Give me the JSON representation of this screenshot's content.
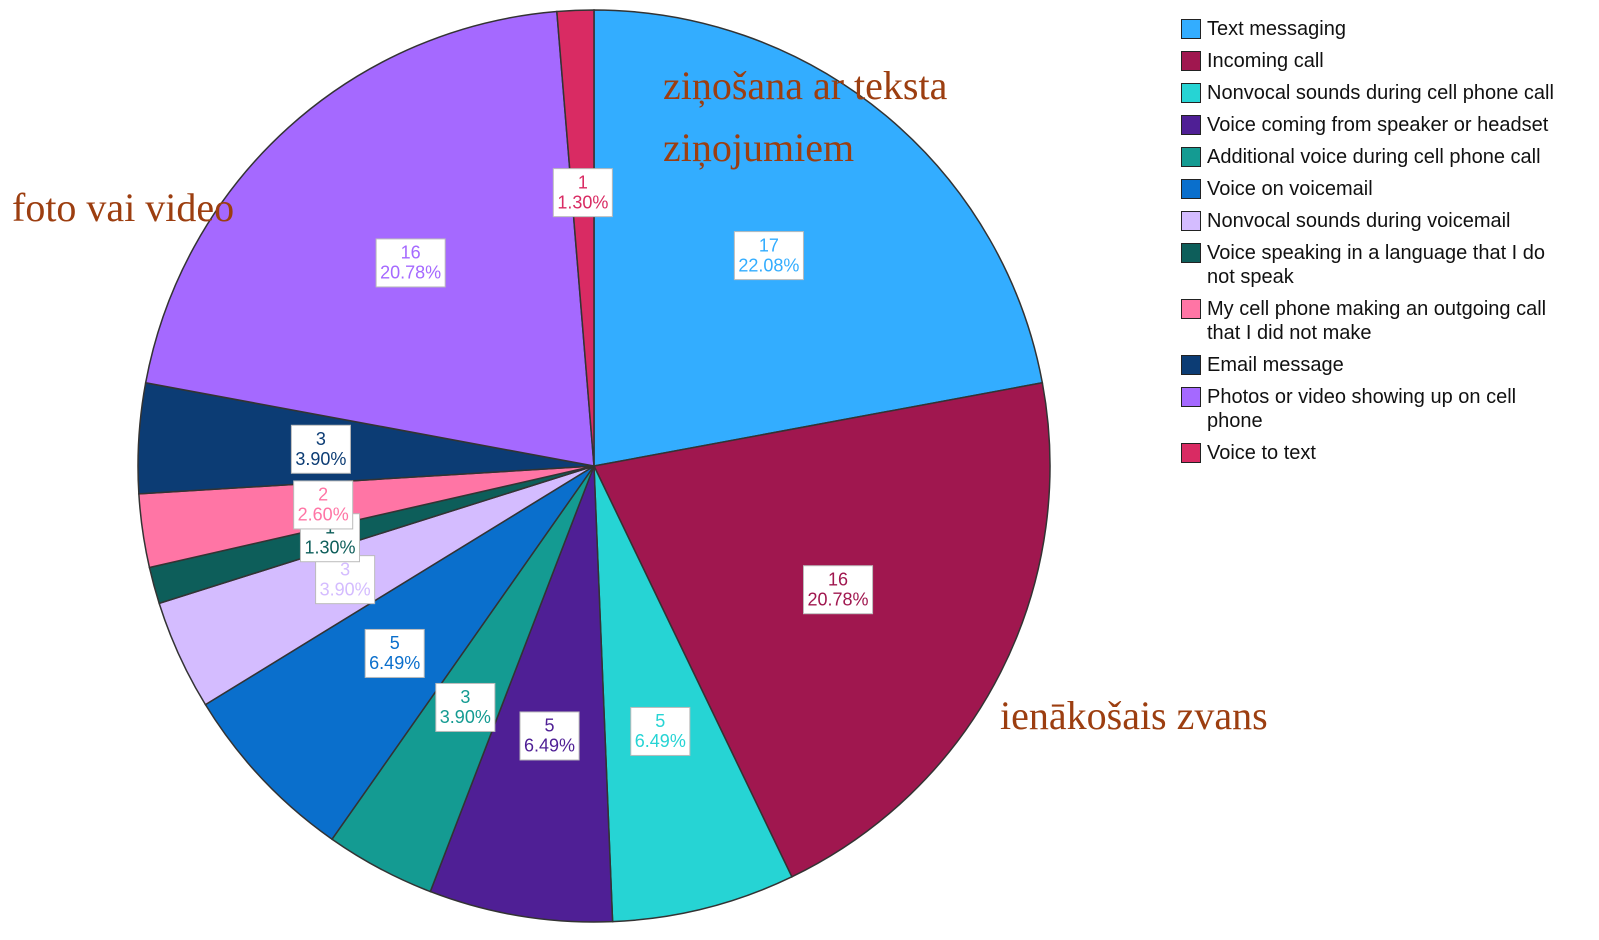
{
  "chart_data": {
    "type": "pie",
    "categories": [
      "Text messaging",
      "Incoming call",
      "Nonvocal sounds during cell phone call",
      "Voice coming from speaker or headset",
      "Additional voice during cell phone call",
      "Voice on voicemail",
      "Nonvocal sounds during voicemail",
      "Voice speaking in a language that I do not speak",
      "My cell phone making an outgoing call that I did not make",
      "Email message",
      "Photos or video showing up on cell phone",
      "Voice to text"
    ],
    "values": [
      17,
      16,
      5,
      5,
      3,
      5,
      3,
      1,
      2,
      3,
      16,
      1
    ],
    "percent_labels": [
      "22.08%",
      "20.78%",
      "6.49%",
      "6.49%",
      "3.90%",
      "6.49%",
      "3.90%",
      "1.30%",
      "2.60%",
      "3.90%",
      "20.78%",
      "1.30%"
    ],
    "colors": [
      "#33adff",
      "#a0174f",
      "#26d4d4",
      "#4f1f95",
      "#149b92",
      "#0a6fcc",
      "#d4bcff",
      "#0d5e5a",
      "#ff75a5",
      "#0c3c74",
      "#a569ff",
      "#d92b63"
    ],
    "legend": "right",
    "annotations": [
      {
        "lines": [
          "ziņošana ar teksta",
          "ziņojumiem"
        ]
      },
      {
        "lines": [
          "foto vai video"
        ]
      },
      {
        "lines": [
          "ienākošais zvans"
        ]
      }
    ]
  }
}
